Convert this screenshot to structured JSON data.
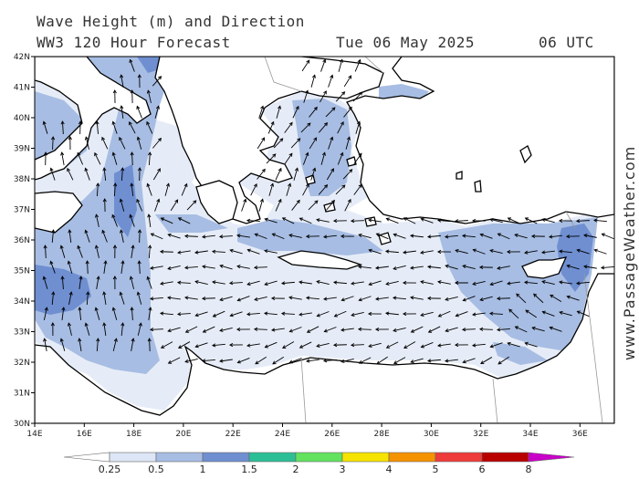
{
  "header": {
    "title": "Wave Height (m) and Direction",
    "subtitle": "WW3 120 Hour Forecast",
    "datetime": "Tue 06 May 2025",
    "time": "06 UTC"
  },
  "watermark": "www.PassageWeather.com",
  "map": {
    "lon_range": [
      14,
      37
    ],
    "lat_range": [
      30,
      42
    ],
    "lon_ticks": [
      "14E",
      "16E",
      "18E",
      "20E",
      "22E",
      "24E",
      "26E",
      "28E",
      "30E",
      "32E",
      "34E",
      "36E"
    ],
    "lat_ticks": [
      "30N",
      "31N",
      "32N",
      "33N",
      "34N",
      "35N",
      "36N",
      "37N",
      "38N",
      "39N",
      "40N",
      "41N",
      "42N"
    ],
    "colors": {
      "land": "#ffffff",
      "sea_low": "#e6ecf7",
      "wave_05": "#a7bde3",
      "wave_1": "#6f8fd1",
      "coast": "#000000",
      "arrow": "#000000"
    }
  },
  "legend": {
    "labels": [
      "0.25",
      "0.5",
      "1",
      "1.5",
      "2",
      "3",
      "4",
      "5",
      "6",
      "8"
    ],
    "colors": [
      "#ffffff",
      "#dde6f6",
      "#a7bde3",
      "#6f8fd1",
      "#2cbf96",
      "#62e25f",
      "#f6e300",
      "#f59200",
      "#ee3b3b",
      "#b90000",
      "#c800c8"
    ]
  }
}
